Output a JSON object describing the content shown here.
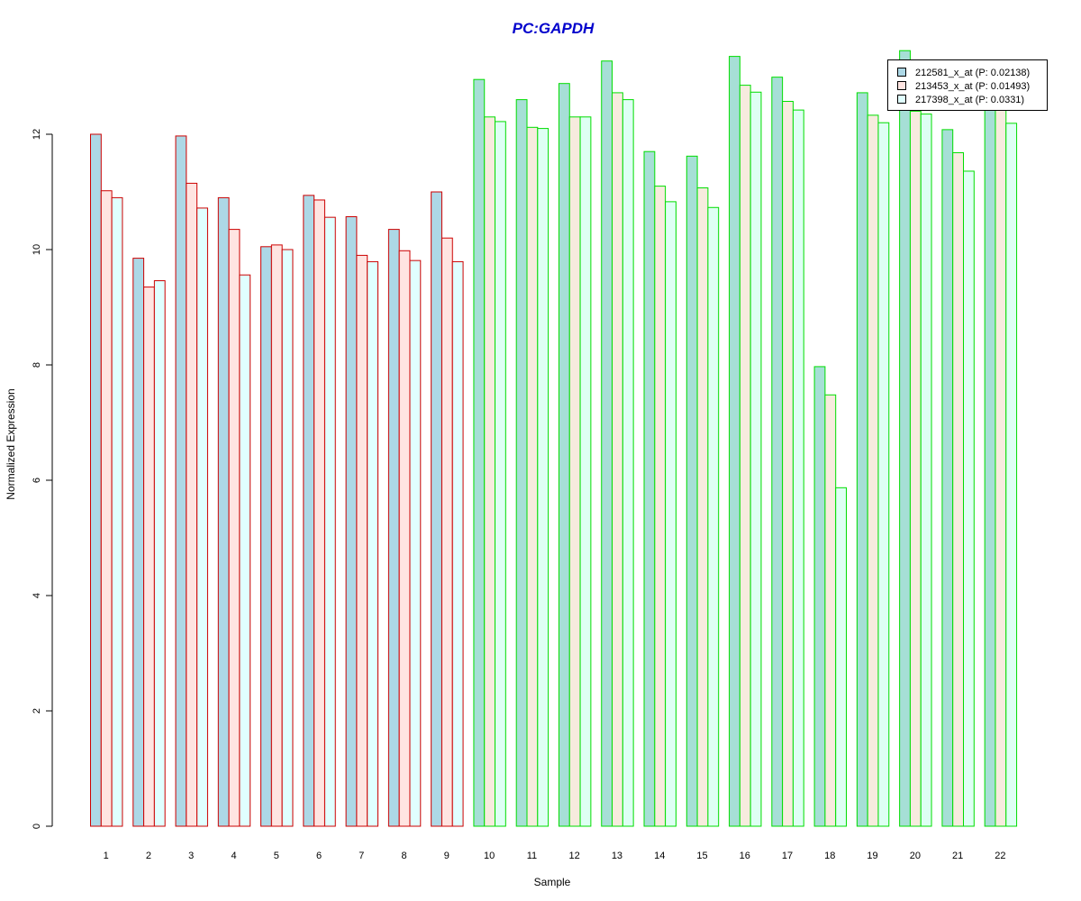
{
  "chart_data": {
    "type": "bar",
    "title": "PC:GAPDH",
    "xlabel": "Sample",
    "ylabel": "Normalized Expression",
    "ylim": [
      0,
      13.5
    ],
    "yticks": [
      0,
      2,
      4,
      6,
      8,
      10,
      12
    ],
    "grid": false,
    "legend_position": "top-right",
    "categories": [
      "1",
      "2",
      "3",
      "4",
      "5",
      "6",
      "7",
      "8",
      "9",
      "10",
      "11",
      "12",
      "13",
      "14",
      "15",
      "16",
      "17",
      "18",
      "19",
      "20",
      "21",
      "22"
    ],
    "group_a_count": 9,
    "series": [
      {
        "name": "212581_x_at (P: 0.02138)",
        "values": [
          12.0,
          9.85,
          11.97,
          10.9,
          10.05,
          10.94,
          10.57,
          10.35,
          11.0,
          12.95,
          12.6,
          12.88,
          13.27,
          11.7,
          11.62,
          13.35,
          12.99,
          7.97,
          12.72,
          13.45,
          12.08,
          12.5
        ]
      },
      {
        "name": "213453_x_at (P: 0.01493)",
        "values": [
          11.02,
          9.35,
          11.15,
          10.35,
          10.08,
          10.86,
          9.9,
          9.98,
          10.2,
          12.3,
          12.12,
          12.3,
          12.72,
          11.1,
          11.07,
          12.85,
          12.57,
          7.48,
          12.33,
          12.4,
          11.68,
          12.45
        ]
      },
      {
        "name": "217398_x_at (P: 0.0331)",
        "values": [
          10.9,
          9.46,
          10.72,
          9.56,
          10.0,
          10.56,
          9.79,
          9.81,
          9.79,
          12.22,
          12.1,
          12.3,
          12.6,
          10.83,
          10.73,
          12.73,
          12.42,
          5.87,
          12.2,
          12.35,
          11.36,
          12.19
        ]
      }
    ],
    "colors": {
      "fills": [
        "#add8e6",
        "#ffe4e1",
        "#e0ffff"
      ],
      "fills_group_b": [
        "#a6dfd6",
        "#f7ebde",
        "#defff4"
      ],
      "border_group_a": "#cc0000",
      "border_group_b": "#00dd00",
      "title": "#0000cc"
    }
  }
}
